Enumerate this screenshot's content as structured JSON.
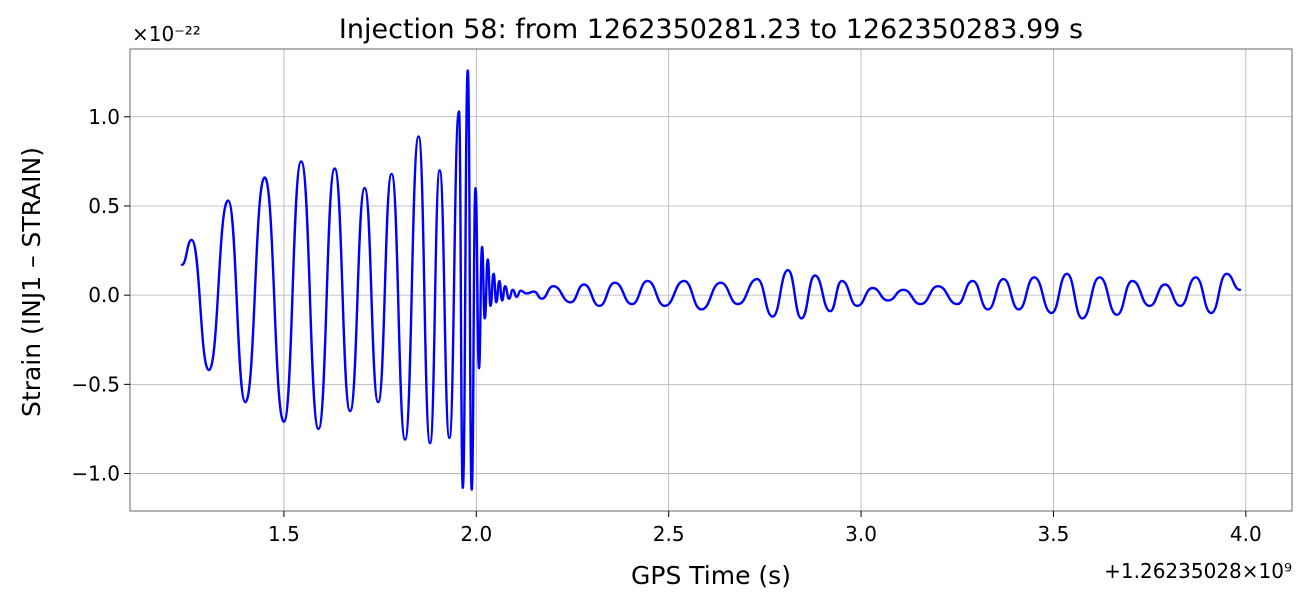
{
  "chart_data": {
    "type": "line",
    "title": "Injection 58: from 1262350281.23 to 1262350283.99 s",
    "xlabel": "GPS Time (s)",
    "ylabel": "Strain (INJ1 – STRAIN)",
    "x_offset_label": "+1.26235028×10⁹",
    "y_scale_label": "×10⁻²²",
    "xlim": [
      1.1,
      4.12
    ],
    "ylim": [
      -1.21,
      1.38
    ],
    "xticks": [
      1.5,
      2.0,
      2.5,
      3.0,
      3.5,
      4.0
    ],
    "xtick_labels": [
      "1.5",
      "2.0",
      "2.5",
      "3.0",
      "3.5",
      "4.0"
    ],
    "yticks": [
      -1.0,
      -0.5,
      0.0,
      0.5,
      1.0
    ],
    "ytick_labels": [
      "−1.0",
      "−0.5",
      "0.0",
      "0.5",
      "1.0"
    ],
    "grid": true,
    "series": [
      {
        "color": "#0000ff",
        "x": [
          1.235,
          1.26,
          1.305,
          1.355,
          1.4,
          1.45,
          1.5,
          1.545,
          1.59,
          1.632,
          1.672,
          1.71,
          1.745,
          1.78,
          1.815,
          1.85,
          1.88,
          1.905,
          1.93,
          1.955,
          1.965,
          1.978,
          1.988,
          1.998,
          2.007,
          2.015,
          2.022,
          2.03,
          2.037,
          2.045,
          2.052,
          2.06,
          2.067,
          2.075,
          2.085,
          2.095,
          2.105,
          2.115,
          2.13,
          2.15,
          2.17,
          2.2,
          2.245,
          2.28,
          2.32,
          2.36,
          2.405,
          2.445,
          2.49,
          2.54,
          2.585,
          2.635,
          2.68,
          2.73,
          2.77,
          2.81,
          2.845,
          2.88,
          2.92,
          2.95,
          2.99,
          3.03,
          3.07,
          3.11,
          3.155,
          3.2,
          3.25,
          3.29,
          3.33,
          3.37,
          3.41,
          3.45,
          3.495,
          3.535,
          3.575,
          3.62,
          3.665,
          3.705,
          3.75,
          3.79,
          3.83,
          3.87,
          3.91,
          3.95,
          3.985
        ],
        "y": [
          0.17,
          0.31,
          -0.42,
          0.53,
          -0.6,
          0.66,
          -0.71,
          0.75,
          -0.75,
          0.71,
          -0.65,
          0.6,
          -0.6,
          0.68,
          -0.81,
          0.89,
          -0.83,
          0.7,
          -0.8,
          1.03,
          -1.08,
          1.26,
          -1.09,
          0.6,
          -0.41,
          0.27,
          -0.13,
          0.2,
          -0.06,
          0.12,
          -0.04,
          0.08,
          -0.03,
          0.05,
          -0.02,
          0.03,
          -0.01,
          0.025,
          0.01,
          0.02,
          -0.02,
          0.05,
          -0.04,
          0.06,
          -0.06,
          0.07,
          -0.05,
          0.08,
          -0.06,
          0.08,
          -0.08,
          0.07,
          -0.05,
          0.09,
          -0.12,
          0.14,
          -0.13,
          0.11,
          -0.09,
          0.08,
          -0.06,
          0.04,
          -0.03,
          0.03,
          -0.05,
          0.05,
          -0.05,
          0.08,
          -0.08,
          0.09,
          -0.08,
          0.1,
          -0.1,
          0.12,
          -0.13,
          0.1,
          -0.11,
          0.08,
          -0.06,
          0.06,
          -0.06,
          0.1,
          -0.1,
          0.12,
          0.03
        ]
      }
    ]
  }
}
